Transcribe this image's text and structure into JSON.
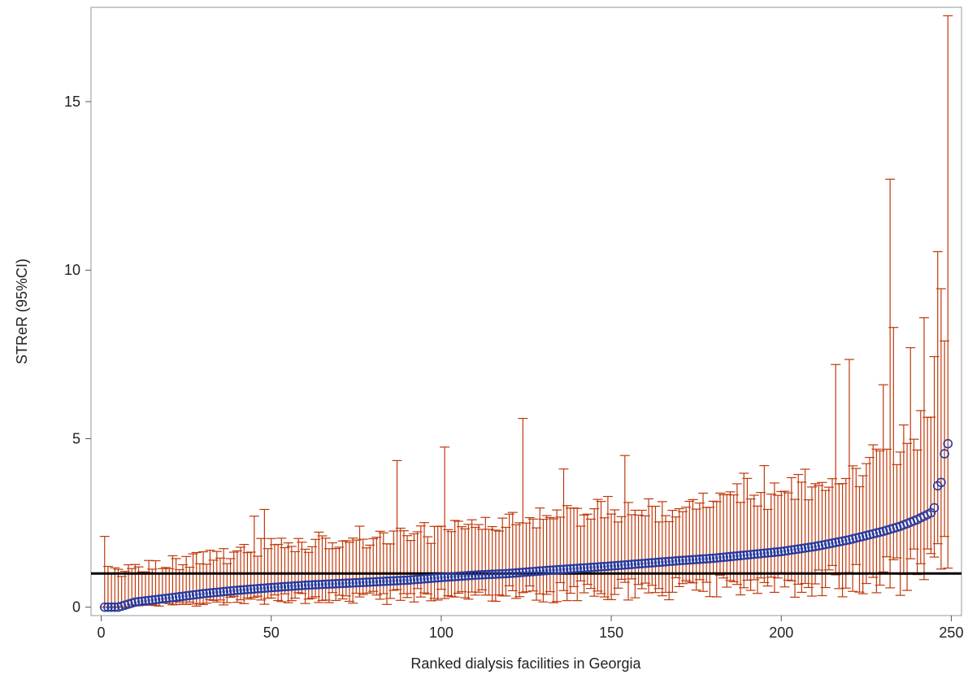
{
  "chart_data": {
    "type": "scatter",
    "title": "",
    "xlabel": "Ranked dialysis facilities in Georgia",
    "ylabel": "STReR (95%CI)",
    "xlim": [
      -3,
      253
    ],
    "ylim": [
      -0.25,
      17.8
    ],
    "xticks": [
      0,
      50,
      100,
      150,
      200,
      250
    ],
    "yticks": [
      0,
      5,
      10,
      15
    ],
    "reference_line": 1,
    "grid": false,
    "legend": "none",
    "point_color": "#2a3b9c",
    "point_fill": "#1f2f8f",
    "errorbar_color": "#c0390b",
    "reference_color": "#000000",
    "n_facilities": 249,
    "anchors": {
      "x": [
        1,
        5,
        10,
        20,
        30,
        40,
        50,
        60,
        70,
        80,
        90,
        100,
        110,
        120,
        130,
        140,
        150,
        160,
        170,
        180,
        190,
        200,
        210,
        220,
        230,
        235,
        240,
        242,
        244,
        245,
        246,
        247,
        248,
        249
      ],
      "y": [
        0,
        0,
        0.15,
        0.27,
        0.4,
        0.5,
        0.58,
        0.65,
        0.7,
        0.75,
        0.8,
        0.88,
        0.95,
        1.0,
        1.08,
        1.15,
        1.22,
        1.3,
        1.38,
        1.45,
        1.55,
        1.65,
        1.8,
        2.0,
        2.25,
        2.4,
        2.6,
        2.7,
        2.8,
        2.95,
        3.6,
        3.7,
        4.55,
        4.85
      ]
    },
    "highlighted_upper_ci": [
      {
        "x": 1,
        "upper": 2.1
      },
      {
        "x": 45,
        "upper": 2.7
      },
      {
        "x": 48,
        "upper": 2.9
      },
      {
        "x": 87,
        "upper": 4.35
      },
      {
        "x": 101,
        "upper": 4.75
      },
      {
        "x": 124,
        "upper": 5.6
      },
      {
        "x": 136,
        "upper": 4.1
      },
      {
        "x": 154,
        "upper": 4.5
      },
      {
        "x": 195,
        "upper": 4.2
      },
      {
        "x": 216,
        "upper": 7.2
      },
      {
        "x": 220,
        "upper": 7.35
      },
      {
        "x": 230,
        "upper": 6.6
      },
      {
        "x": 232,
        "upper": 12.7
      },
      {
        "x": 233,
        "upper": 8.3
      },
      {
        "x": 238,
        "upper": 7.7
      },
      {
        "x": 246,
        "upper": 10.55
      },
      {
        "x": 247,
        "upper": 9.45
      },
      {
        "x": 248,
        "upper": 7.9
      },
      {
        "x": 249,
        "upper": 17.55
      }
    ]
  }
}
